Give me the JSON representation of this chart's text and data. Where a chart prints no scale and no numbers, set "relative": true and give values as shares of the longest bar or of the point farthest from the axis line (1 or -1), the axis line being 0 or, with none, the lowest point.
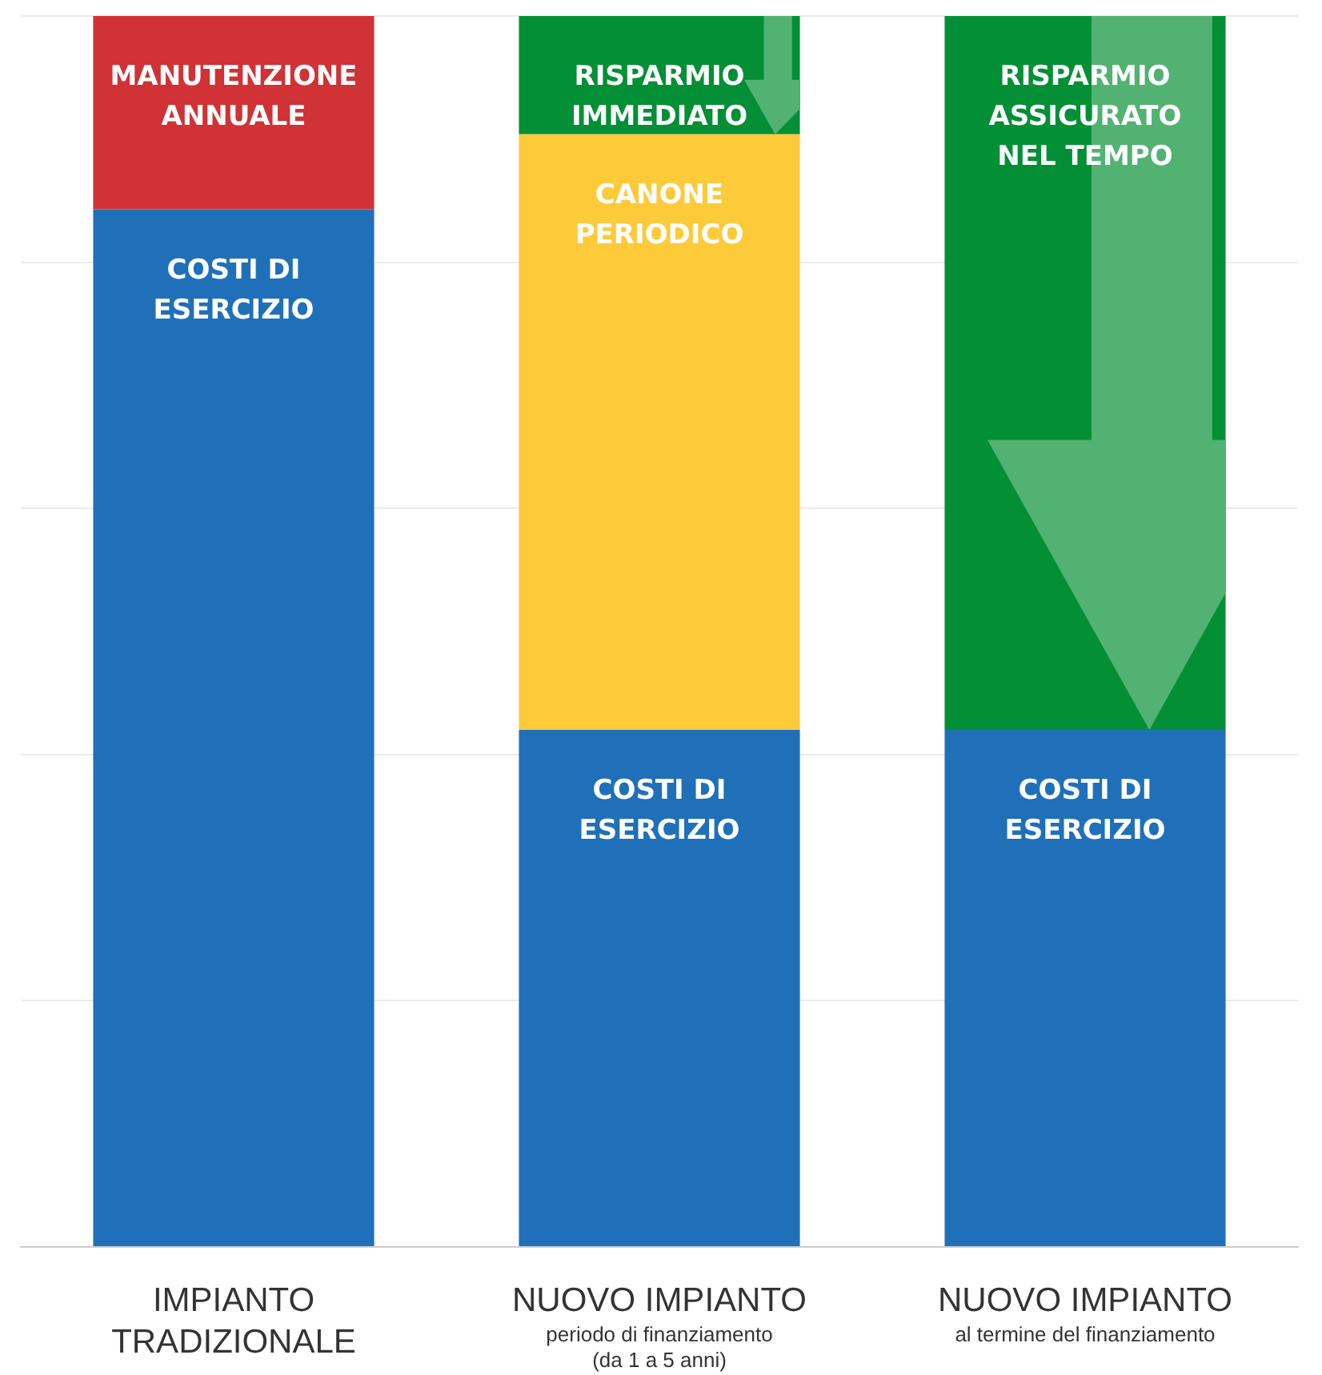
{
  "chart_data": {
    "type": "bar",
    "stacked": true,
    "relative": true,
    "grid": "y",
    "legend": false,
    "categories": [
      "IMPIANTO TRADIZIONALE",
      "NUOVO IMPIANTO\nperiodo di finanziamento\n(da 1 a 5 anni)",
      "NUOVO IMPIANTO\nal termine del finanziamento"
    ],
    "series": [
      {
        "name": "COSTI DI\nESERCIZIO",
        "color": "#1f70b8",
        "values": [
          0.843,
          0.42,
          0.42
        ]
      },
      {
        "name": "MANUTENZIONE\nANNUALE",
        "color": "#d03236",
        "values": [
          0.157,
          null,
          null
        ]
      },
      {
        "name": "CANONE\nPERIODICO",
        "color": "#fdca39",
        "values": [
          null,
          0.484,
          null
        ]
      },
      {
        "name": "RISPARMIO\nIMMEDIATO",
        "color": "#038f36",
        "values": [
          null,
          0.096,
          null
        ]
      },
      {
        "name": "RISPARMIO\nASSICURATO\nNEL TEMPO",
        "color": "#038f36",
        "values": [
          null,
          null,
          0.58
        ]
      }
    ]
  }
}
